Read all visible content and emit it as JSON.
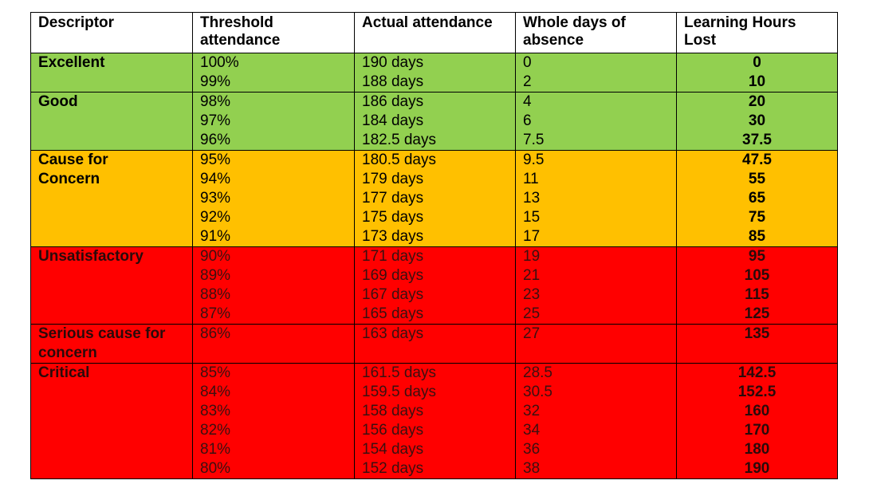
{
  "headers": {
    "descriptor": "Descriptor",
    "threshold": "Threshold\nattendance",
    "actual": "Actual attendance",
    "whole_days": "Whole days of\nabsence",
    "hours_lost": "Learning Hours\nLost"
  },
  "colors": {
    "green": "#92d050",
    "amber": "#ffc000",
    "red": "#ff0000"
  },
  "groups": [
    {
      "descriptor": "Excellent",
      "color": "green",
      "rows": [
        {
          "threshold": "100%",
          "actual": "190 days",
          "absence": "0",
          "hours": "0"
        },
        {
          "threshold": "99%",
          "actual": "188 days",
          "absence": "2",
          "hours": "10"
        }
      ]
    },
    {
      "descriptor": "Good",
      "color": "green",
      "rows": [
        {
          "threshold": "98%",
          "actual": "186 days",
          "absence": "4",
          "hours": "20"
        },
        {
          "threshold": "97%",
          "actual": "184 days",
          "absence": "6",
          "hours": "30"
        },
        {
          "threshold": "96%",
          "actual": "182.5 days",
          "absence": "7.5",
          "hours": "37.5"
        }
      ]
    },
    {
      "descriptor": "Cause for\nConcern",
      "color": "amber",
      "rows": [
        {
          "threshold": "95%",
          "actual": "180.5 days",
          "absence": "9.5",
          "hours": "47.5"
        },
        {
          "threshold": "94%",
          "actual": "179 days",
          "absence": "11",
          "hours": "55"
        },
        {
          "threshold": "93%",
          "actual": "177 days",
          "absence": "13",
          "hours": "65"
        },
        {
          "threshold": "92%",
          "actual": "175 days",
          "absence": "15",
          "hours": "75"
        },
        {
          "threshold": "91%",
          "actual": "173 days",
          "absence": "17",
          "hours": "85"
        }
      ]
    },
    {
      "descriptor": "Unsatisfactory",
      "color": "red",
      "rows": [
        {
          "threshold": "90%",
          "actual": "171 days",
          "absence": "19",
          "hours": "95"
        },
        {
          "threshold": "89%",
          "actual": "169 days",
          "absence": "21",
          "hours": "105"
        },
        {
          "threshold": "88%",
          "actual": "167 days",
          "absence": "23",
          "hours": "115"
        },
        {
          "threshold": "87%",
          "actual": "165 days",
          "absence": "25",
          "hours": "125"
        }
      ]
    },
    {
      "descriptor": "Serious cause for\nconcern",
      "color": "red",
      "rows": [
        {
          "threshold": "86%",
          "actual": "163 days",
          "absence": "27",
          "hours": "135"
        }
      ]
    },
    {
      "descriptor": "Critical",
      "color": "red",
      "rows": [
        {
          "threshold": "85%",
          "actual": "161.5 days",
          "absence": "28.5",
          "hours": "142.5"
        },
        {
          "threshold": "84%",
          "actual": "159.5 days",
          "absence": "30.5",
          "hours": "152.5"
        },
        {
          "threshold": "83%",
          "actual": "158 days",
          "absence": "32",
          "hours": "160"
        },
        {
          "threshold": "82%",
          "actual": "156 days",
          "absence": "34",
          "hours": "170"
        },
        {
          "threshold": "81%",
          "actual": "154 days",
          "absence": "36",
          "hours": "180"
        },
        {
          "threshold": "80%",
          "actual": "152 days",
          "absence": "38",
          "hours": "190"
        }
      ]
    }
  ]
}
